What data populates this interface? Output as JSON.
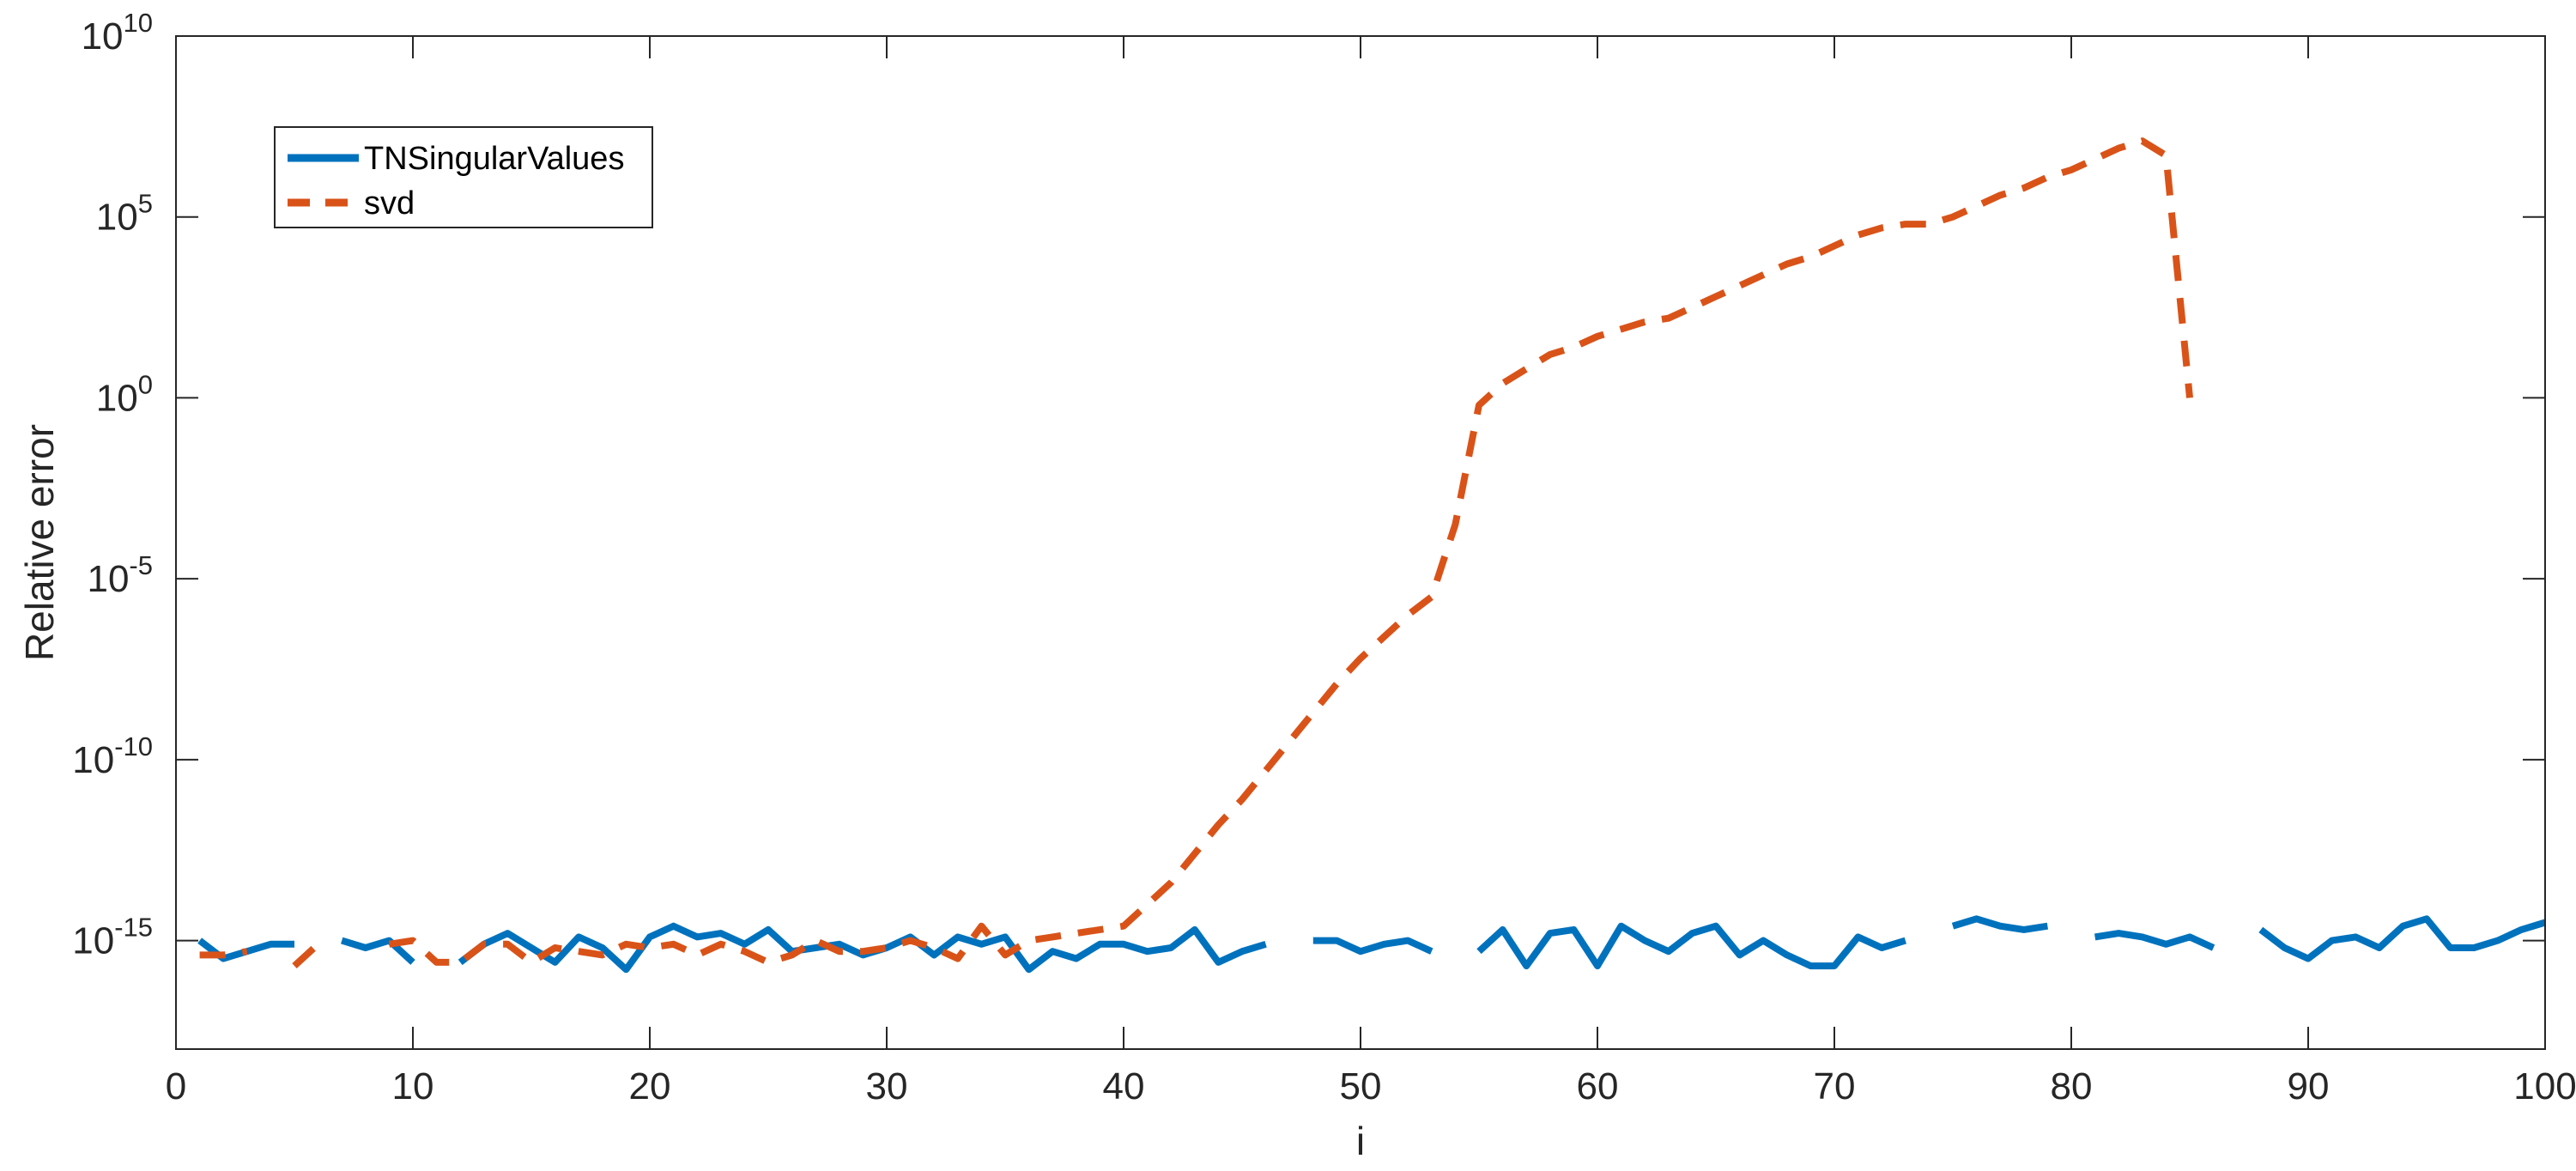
{
  "chart_data": {
    "type": "line",
    "xlabel": "i",
    "ylabel": "Relative error",
    "xlim": [
      0,
      100
    ],
    "ylim_exponent": [
      -18,
      10
    ],
    "yscale": "log",
    "x_ticks": [
      0,
      10,
      20,
      30,
      40,
      50,
      60,
      70,
      80,
      90,
      100
    ],
    "x_tick_labels": [
      "0",
      "10",
      "20",
      "30",
      "40",
      "50",
      "60",
      "70",
      "80",
      "90",
      "100"
    ],
    "y_ticks_exponent": [
      -15,
      -10,
      -5,
      0,
      5,
      10
    ],
    "y_tick_labels": [
      {
        "base": "10",
        "exp": "-15"
      },
      {
        "base": "10",
        "exp": "-10"
      },
      {
        "base": "10",
        "exp": "-5"
      },
      {
        "base": "10",
        "exp": "0"
      },
      {
        "base": "10",
        "exp": "5"
      },
      {
        "base": "10",
        "exp": "10"
      }
    ],
    "grid": false,
    "box": true,
    "legend_position": "top-left",
    "series": [
      {
        "name": "TNSingularValues",
        "color": "#0072BD",
        "style": "solid",
        "log10_y": [
          -15.0,
          -15.5,
          -15.3,
          -15.1,
          -15.1,
          null,
          -15.0,
          -15.2,
          -15.0,
          -15.6,
          null,
          -15.6,
          -15.1,
          -14.8,
          -15.2,
          -15.6,
          -14.9,
          -15.2,
          -15.8,
          -14.9,
          -14.6,
          -14.9,
          -14.8,
          -15.1,
          -14.7,
          -15.3,
          -15.2,
          -15.1,
          -15.4,
          -15.2,
          -14.9,
          -15.4,
          -14.9,
          -15.1,
          -14.9,
          -15.8,
          -15.3,
          -15.5,
          -15.1,
          -15.1,
          -15.3,
          -15.2,
          -14.7,
          -15.6,
          -15.3,
          -15.1,
          null,
          -15.0,
          -15.0,
          -15.3,
          -15.1,
          -15.0,
          -15.3,
          null,
          -15.3,
          -14.7,
          -15.7,
          -14.8,
          -14.7,
          -15.7,
          -14.6,
          -15.0,
          -15.3,
          -14.8,
          -14.6,
          -15.4,
          -15.0,
          -15.4,
          -15.7,
          -15.7,
          -14.9,
          -15.2,
          -15.0,
          null,
          -14.6,
          -14.4,
          -14.6,
          -14.7,
          -14.6,
          null,
          -14.9,
          -14.8,
          -14.9,
          -15.1,
          -14.9,
          -15.2,
          null,
          -14.7,
          -15.2,
          -15.5,
          -15.0,
          -14.9,
          -15.2,
          -14.6,
          -14.4,
          -15.2,
          -15.2,
          -15.0,
          -14.7,
          -14.5
        ]
      },
      {
        "name": "svd",
        "color": "#D95319",
        "style": "dashed",
        "log10_y": [
          -15.4,
          -15.4,
          -15.3,
          null,
          -15.7,
          -15.1,
          null,
          null,
          -15.1,
          -15.0,
          -15.6,
          -15.6,
          -15.1,
          -15.1,
          -15.6,
          -15.2,
          -15.3,
          -15.4,
          -15.1,
          -15.2,
          -15.1,
          -15.4,
          -15.1,
          -15.3,
          -15.6,
          -15.4,
          -15.0,
          -15.3,
          -15.3,
          -15.2,
          -15.0,
          -15.2,
          -15.5,
          -14.6,
          -15.4,
          -15.0,
          -14.9,
          -14.8,
          -14.7,
          -14.6,
          -14.0,
          -13.4,
          -12.6,
          -11.8,
          -11.1,
          -10.3,
          -9.5,
          -8.7,
          -7.9,
          -7.2,
          -6.6,
          -6.0,
          -5.5,
          -3.5,
          -0.2,
          0.4,
          0.8,
          1.2,
          1.4,
          1.7,
          1.9,
          2.1,
          2.2,
          2.5,
          2.8,
          3.1,
          3.4,
          3.7,
          3.9,
          4.2,
          4.5,
          4.7,
          4.8,
          4.8,
          5.0,
          5.3,
          5.6,
          5.8,
          6.1,
          6.3,
          6.6,
          6.9,
          7.1,
          6.7,
          0.0
        ]
      }
    ]
  }
}
